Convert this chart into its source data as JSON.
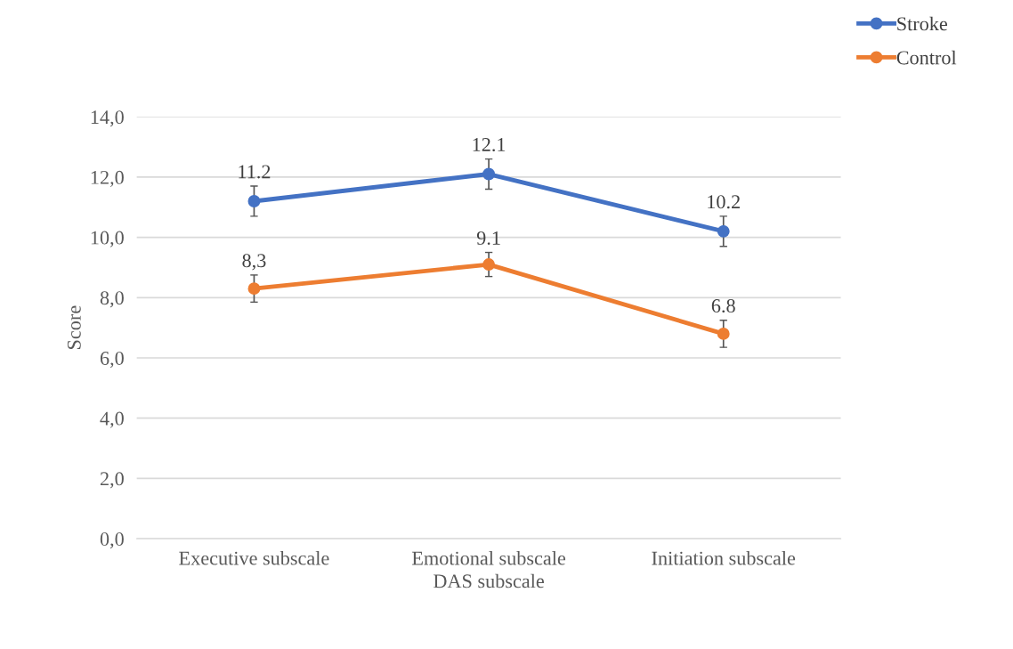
{
  "chart_data": {
    "type": "line",
    "xlabel": "DAS subscale",
    "ylabel": "Score",
    "categories": [
      "Executive subscale",
      "Emotional subscale",
      "Initiation subscale"
    ],
    "series": [
      {
        "name": "Stroke",
        "color": "#4472c4",
        "values": [
          11.2,
          12.1,
          10.2
        ],
        "errors": [
          0.5,
          0.5,
          0.5
        ],
        "value_labels": [
          "11.2",
          "12.1",
          "10.2"
        ]
      },
      {
        "name": "Control",
        "color": "#ed7d31",
        "values": [
          8.3,
          9.1,
          6.8
        ],
        "errors": [
          0.45,
          0.4,
          0.45
        ],
        "value_labels": [
          "8,3",
          "9.1",
          "6.8"
        ]
      }
    ],
    "ylim": [
      0,
      14
    ],
    "yticks": [
      {
        "value": 0,
        "label": "0,0"
      },
      {
        "value": 2,
        "label": "2,0"
      },
      {
        "value": 4,
        "label": "4,0"
      },
      {
        "value": 6,
        "label": "6,0"
      },
      {
        "value": 8,
        "label": "8,0"
      },
      {
        "value": 10,
        "label": "10,0"
      },
      {
        "value": 12,
        "label": "12,0"
      },
      {
        "value": 14,
        "label": "14,0"
      }
    ],
    "grid": "y",
    "legend": "top right",
    "marker": "circle",
    "line_style": "solid"
  }
}
